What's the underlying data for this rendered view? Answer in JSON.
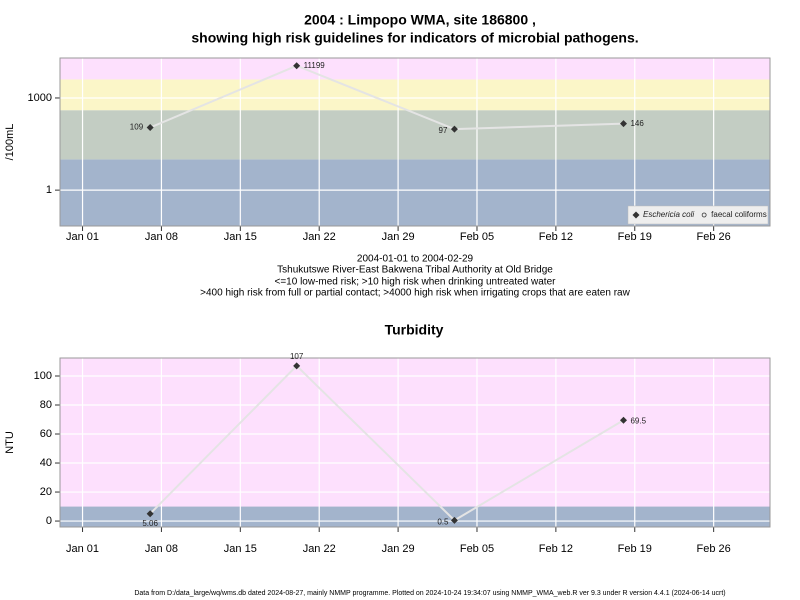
{
  "title": [
    "2004 : Limpopo WMA, site 186800 ,",
    "showing high risk guidelines for indicators of microbial pathogens."
  ],
  "annotations": [
    "2004-01-01 to 2004-02-29",
    "Tshukutswe River-East Bakwena Tribal Authority at Old Bridge",
    "<=10 low-med risk; >10 high risk when drinking untreated water",
    ">400 high risk from full or partial contact; >4000 high risk when irrigating crops that are eaten raw"
  ],
  "footer": "Data from D:/data_large/wq/wms.db dated 2024-08-27, mainly NMMP programme. Plotted on 2024-10-24 19:34:07 using NMMP_WMA_web.R ver 9.3 under R version 4.4.1 (2024-06-14 ucrt)",
  "chart_data": [
    {
      "type": "line",
      "y_label": "/100mL",
      "log_y": true,
      "x": [
        "2004-01-07",
        "2004-01-20",
        "2004-02-03",
        "2004-02-18"
      ],
      "series": [
        {
          "name": "Eschericia coli",
          "color": "#333333",
          "marker": "diamond",
          "values": [
            109,
            11199,
            97,
            146
          ]
        },
        {
          "name": "faecal coliforms",
          "color": "#333333",
          "marker": "circle",
          "values": [
            null,
            null,
            null,
            null
          ]
        }
      ],
      "xlim": [
        "2003-12-30",
        "2004-03-02"
      ],
      "xticks": [
        {
          "value": "2004-01-01",
          "label": "Jan 01"
        },
        {
          "value": "2004-01-08",
          "label": "Jan 08"
        },
        {
          "value": "2004-01-15",
          "label": "Jan 15"
        },
        {
          "value": "2004-01-22",
          "label": "Jan 22"
        },
        {
          "value": "2004-01-29",
          "label": "Jan 29"
        },
        {
          "value": "2004-02-05",
          "label": "Feb 05"
        },
        {
          "value": "2004-02-12",
          "label": "Feb 12"
        },
        {
          "value": "2004-02-19",
          "label": "Feb 19"
        },
        {
          "value": "2004-02-26",
          "label": "Feb 26"
        }
      ],
      "ylim": [
        0.068,
        20000
      ],
      "yticks": [
        1,
        1000
      ],
      "thresholds": [
        10,
        400,
        4000
      ],
      "band_colors": [
        "#a3b4cc",
        "#c3cdc3",
        "#fbf6c8",
        "#fde0fd"
      ],
      "line_color": "#e4e4e4",
      "grid": true,
      "legend": "bottom-right"
    },
    {
      "type": "line",
      "title": "Turbidity",
      "y_label": "NTU",
      "log_y": false,
      "x": [
        "2004-01-07",
        "2004-01-20",
        "2004-02-03",
        "2004-02-18"
      ],
      "series": [
        {
          "name": null,
          "color": "#333333",
          "marker": "diamond",
          "values": [
            5.06,
            107,
            0.5,
            69.5
          ]
        }
      ],
      "xlim": [
        "2003-12-30",
        "2004-03-02"
      ],
      "xticks": [
        {
          "value": "2004-01-01",
          "label": "Jan 01"
        },
        {
          "value": "2004-01-08",
          "label": "Jan 08"
        },
        {
          "value": "2004-01-15",
          "label": "Jan 15"
        },
        {
          "value": "2004-01-22",
          "label": "Jan 22"
        },
        {
          "value": "2004-01-29",
          "label": "Jan 29"
        },
        {
          "value": "2004-02-05",
          "label": "Feb 05"
        },
        {
          "value": "2004-02-12",
          "label": "Feb 12"
        },
        {
          "value": "2004-02-19",
          "label": "Feb 19"
        },
        {
          "value": "2004-02-26",
          "label": "Feb 26"
        }
      ],
      "ylim": [
        -4.1,
        112.4
      ],
      "yticks": [
        0,
        20,
        40,
        60,
        80,
        100
      ],
      "thresholds": [
        10
      ],
      "band_colors": [
        "#a3b4cc",
        "#fde0fd"
      ],
      "line_color": "#e4e4e4",
      "grid": true
    }
  ]
}
